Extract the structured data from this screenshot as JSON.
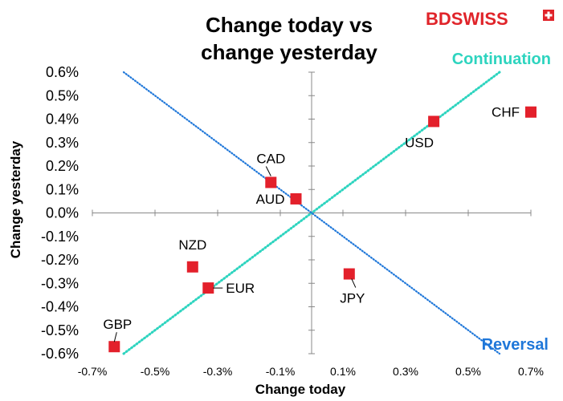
{
  "logo": {
    "text_bd": "BD",
    "text_swiss": "SWISS",
    "color": "#e0242a"
  },
  "chart_data": {
    "type": "scatter",
    "title_lines": [
      "Change today vs",
      "change yesterday"
    ],
    "xlabel": "Change today",
    "ylabel": "Change yesterday",
    "xlim": [
      -0.7,
      0.7
    ],
    "ylim": [
      -0.6,
      0.6
    ],
    "x_ticks": [
      "-0.7%",
      "-0.5%",
      "-0.3%",
      "-0.1%",
      "0.1%",
      "0.3%",
      "0.5%",
      "0.7%"
    ],
    "x_tick_values": [
      -0.7,
      -0.5,
      -0.3,
      -0.1,
      0.1,
      0.3,
      0.5,
      0.7
    ],
    "y_ticks": [
      "0.6%",
      "0.5%",
      "0.4%",
      "0.3%",
      "0.2%",
      "0.1%",
      "0.0%",
      "-0.1%",
      "-0.2%",
      "-0.3%",
      "-0.4%",
      "-0.5%",
      "-0.6%"
    ],
    "y_tick_values": [
      0.6,
      0.5,
      0.4,
      0.3,
      0.2,
      0.1,
      0.0,
      -0.1,
      -0.2,
      -0.3,
      -0.4,
      -0.5,
      -0.6
    ],
    "marker_color": "#e3202b",
    "points": [
      {
        "label": "CHF",
        "x": 0.7,
        "y": 0.43,
        "label_pos": "left"
      },
      {
        "label": "USD",
        "x": 0.39,
        "y": 0.39,
        "label_pos": "below-left"
      },
      {
        "label": "CAD",
        "x": -0.13,
        "y": 0.13,
        "label_pos": "above",
        "leader": true
      },
      {
        "label": "AUD",
        "x": -0.05,
        "y": 0.06,
        "label_pos": "left"
      },
      {
        "label": "NZD",
        "x": -0.38,
        "y": -0.23,
        "label_pos": "above"
      },
      {
        "label": "EUR",
        "x": -0.33,
        "y": -0.32,
        "label_pos": "right",
        "leader": true
      },
      {
        "label": "JPY",
        "x": 0.12,
        "y": -0.26,
        "label_pos": "below",
        "leader": true
      },
      {
        "label": "GBP",
        "x": -0.63,
        "y": -0.57,
        "label_pos": "above",
        "leader": true
      }
    ],
    "lines": [
      {
        "name": "Continuation",
        "color": "#2dd4bf",
        "from": [
          -0.6,
          -0.6
        ],
        "to": [
          0.6,
          0.6
        ]
      },
      {
        "name": "Reversal",
        "color": "#1f77d9",
        "from": [
          -0.6,
          0.6
        ],
        "to": [
          0.6,
          -0.6
        ]
      }
    ],
    "annotations": {
      "continuation": "Continuation",
      "reversal": "Reversal"
    },
    "annotation_colors": {
      "continuation": "#2dd4bf",
      "reversal": "#1f77d9"
    },
    "grid": false,
    "legend": "none"
  }
}
